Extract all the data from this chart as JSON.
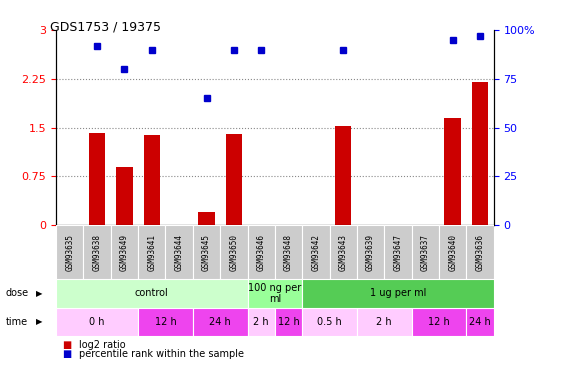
{
  "title": "GDS1753 / 19375",
  "samples": [
    "GSM93635",
    "GSM93638",
    "GSM93649",
    "GSM93641",
    "GSM93644",
    "GSM93645",
    "GSM93650",
    "GSM93646",
    "GSM93648",
    "GSM93642",
    "GSM93643",
    "GSM93639",
    "GSM93647",
    "GSM93637",
    "GSM93640",
    "GSM93636"
  ],
  "log2_ratio": [
    0.0,
    1.42,
    0.9,
    1.38,
    0.0,
    0.2,
    1.4,
    0.0,
    0.0,
    0.0,
    1.52,
    0.0,
    0.0,
    0.0,
    1.65,
    2.2
  ],
  "percentile": [
    null,
    92.0,
    80.0,
    90.0,
    null,
    65.0,
    90.0,
    90.0,
    null,
    null,
    90.0,
    null,
    null,
    null,
    95.0,
    97.0
  ],
  "bar_color": "#cc0000",
  "dot_color": "#0000cc",
  "ylim_left": [
    0,
    3
  ],
  "ylim_right": [
    0,
    100
  ],
  "yticks_left": [
    0,
    0.75,
    1.5,
    2.25,
    3
  ],
  "ytick_labels_left": [
    "0",
    "0.75",
    "1.5",
    "2.25",
    "3"
  ],
  "yticks_right": [
    0,
    25,
    50,
    75,
    100
  ],
  "ytick_labels_right": [
    "0",
    "25",
    "50",
    "75",
    "100%"
  ],
  "hlines": [
    0.75,
    1.5,
    2.25
  ],
  "dose_groups": [
    {
      "label": "control",
      "start": 0,
      "end": 7,
      "color": "#ccffcc"
    },
    {
      "label": "100 ng per\nml",
      "start": 7,
      "end": 9,
      "color": "#99ff99"
    },
    {
      "label": "1 ug per ml",
      "start": 9,
      "end": 16,
      "color": "#55cc55"
    }
  ],
  "time_groups": [
    {
      "label": "0 h",
      "start": 0,
      "end": 3,
      "color": "#ffccff"
    },
    {
      "label": "12 h",
      "start": 3,
      "end": 5,
      "color": "#ee44ee"
    },
    {
      "label": "24 h",
      "start": 5,
      "end": 7,
      "color": "#ee44ee"
    },
    {
      "label": "2 h",
      "start": 7,
      "end": 8,
      "color": "#ffccff"
    },
    {
      "label": "12 h",
      "start": 8,
      "end": 9,
      "color": "#ee44ee"
    },
    {
      "label": "0.5 h",
      "start": 9,
      "end": 11,
      "color": "#ffccff"
    },
    {
      "label": "2 h",
      "start": 11,
      "end": 13,
      "color": "#ffccff"
    },
    {
      "label": "12 h",
      "start": 13,
      "end": 15,
      "color": "#ee44ee"
    },
    {
      "label": "24 h",
      "start": 15,
      "end": 16,
      "color": "#ee44ee"
    }
  ],
  "legend_red_label": "log2 ratio",
  "legend_blue_label": "percentile rank within the sample",
  "bg_color": "#ffffff",
  "tick_bg": "#cccccc",
  "dotted_line_color": "#888888",
  "bar_width": 0.6
}
